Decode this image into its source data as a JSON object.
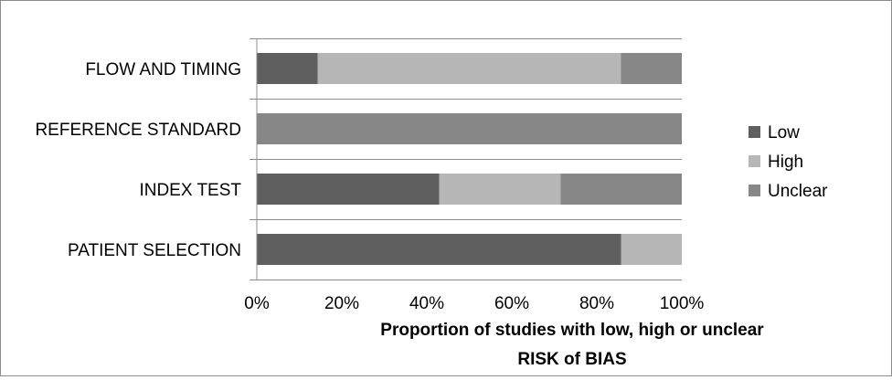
{
  "chart_data": {
    "type": "bar",
    "orientation": "horizontal",
    "stacked": "percent",
    "categories": [
      "FLOW AND TIMING",
      "REFERENCE STANDARD",
      "INDEX TEST",
      "PATIENT SELECTION"
    ],
    "series": [
      {
        "name": "Low",
        "color": "#5f5f5f",
        "values": [
          14.3,
          0,
          42.9,
          85.7
        ]
      },
      {
        "name": "High",
        "color": "#b6b6b6",
        "values": [
          71.4,
          0,
          28.6,
          14.3
        ]
      },
      {
        "name": "Unclear",
        "color": "#878787",
        "values": [
          14.3,
          100,
          28.5,
          0
        ]
      }
    ],
    "x_ticks": [
      "0%",
      "20%",
      "40%",
      "60%",
      "80%",
      "100%"
    ],
    "x_tick_values": [
      0,
      20,
      40,
      60,
      80,
      100
    ],
    "xlim": [
      0,
      100
    ],
    "xlabel_lines": [
      "Proportion of studies with low, high or unclear",
      "RISK of BIAS"
    ],
    "grid": "horizontal category separators",
    "legend_position": "right"
  }
}
